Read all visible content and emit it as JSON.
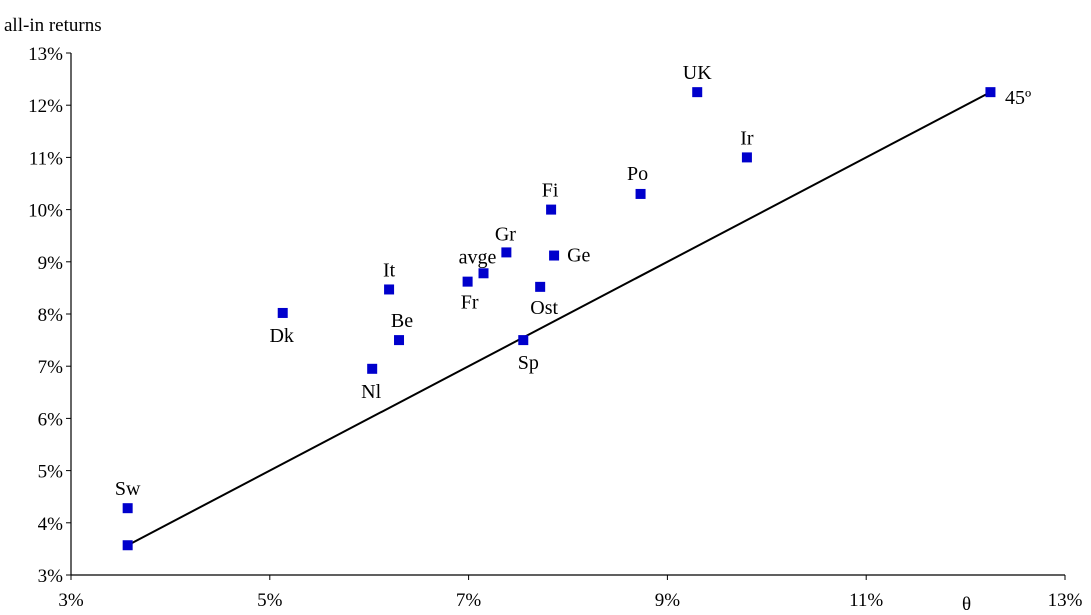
{
  "chart_data": {
    "type": "scatter",
    "xlabel": "θ",
    "ylabel": "all-in returns",
    "xlim": [
      3,
      13
    ],
    "ylim": [
      3,
      13
    ],
    "x_ticks": [
      "3%",
      "5%",
      "7%",
      "9%",
      "11%",
      "13%"
    ],
    "y_ticks": [
      "3%",
      "4%",
      "5%",
      "6%",
      "7%",
      "8%",
      "9%",
      "10%",
      "11%",
      "12%",
      "13%"
    ],
    "marker_color": "#0000cc",
    "line_label": "45º",
    "line": {
      "x": [
        3.55,
        12.25
      ],
      "y": [
        3.55,
        12.25
      ]
    },
    "points": [
      {
        "label": "UK",
        "x": 9.3,
        "y": 12.25
      },
      {
        "label": "Ir",
        "x": 9.8,
        "y": 11.0
      },
      {
        "label": "Po",
        "x": 8.73,
        "y": 10.3
      },
      {
        "label": "Fi",
        "x": 7.83,
        "y": 10.0
      },
      {
        "label": "Gr",
        "x": 7.38,
        "y": 9.18
      },
      {
        "label": "Ge",
        "x": 7.86,
        "y": 9.12
      },
      {
        "label": "avge",
        "x": 7.15,
        "y": 8.78
      },
      {
        "label": "Fr",
        "x": 6.99,
        "y": 8.62
      },
      {
        "label": "Ost",
        "x": 7.72,
        "y": 8.52
      },
      {
        "label": "It",
        "x": 6.2,
        "y": 8.47
      },
      {
        "label": "Dk",
        "x": 5.13,
        "y": 8.02
      },
      {
        "label": "Be",
        "x": 6.3,
        "y": 7.5
      },
      {
        "label": "Sp",
        "x": 7.55,
        "y": 7.5
      },
      {
        "label": "Nl",
        "x": 6.03,
        "y": 6.95
      },
      {
        "label": "Sw",
        "x": 3.57,
        "y": 4.28
      },
      {
        "label": "",
        "x": 3.57,
        "y": 3.57
      },
      {
        "label": "",
        "x": 12.25,
        "y": 12.25
      }
    ]
  }
}
